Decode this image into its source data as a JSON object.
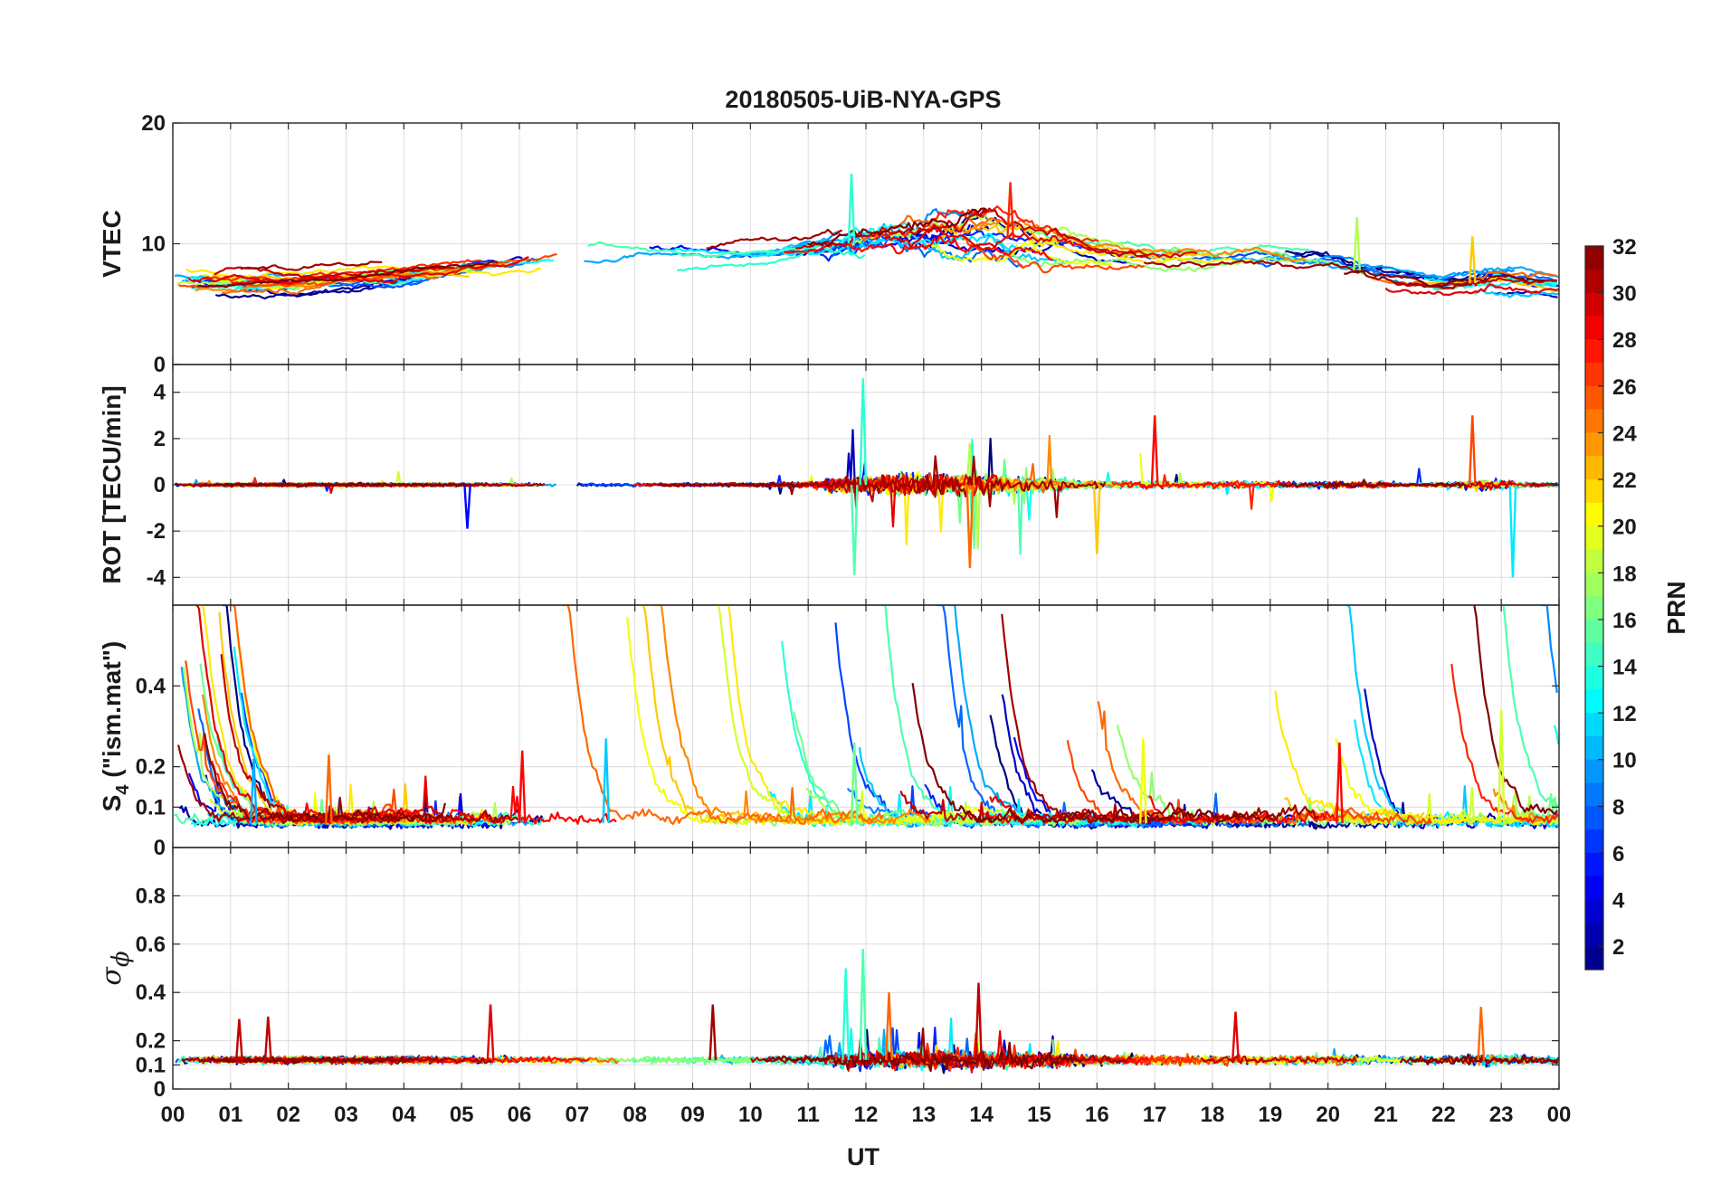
{
  "chart_data": {
    "type": "line",
    "title": "20180505-UiB-NYA-GPS",
    "xlabel": "UT",
    "x_range_hours": [
      0,
      24
    ],
    "x_tick_labels": [
      "00",
      "01",
      "02",
      "03",
      "04",
      "05",
      "06",
      "07",
      "08",
      "09",
      "10",
      "11",
      "12",
      "13",
      "14",
      "15",
      "16",
      "17",
      "18",
      "19",
      "20",
      "21",
      "22",
      "23",
      "00"
    ],
    "colorbar": {
      "label": "PRN",
      "range": [
        1,
        32
      ],
      "tick_labels": [
        "2",
        "4",
        "6",
        "8",
        "10",
        "12",
        "14",
        "16",
        "18",
        "20",
        "22",
        "24",
        "26",
        "28",
        "30",
        "32"
      ],
      "colormap": "jet"
    },
    "panels": [
      {
        "id": "vtec",
        "ylabel": "VTEC",
        "ylim": [
          0,
          20
        ],
        "ytick_labels": [
          "0",
          "10",
          "20"
        ],
        "yticks": [
          0,
          10,
          20
        ],
        "baseline_profile": [
          [
            0,
            7.2
          ],
          [
            2,
            6.8
          ],
          [
            4,
            7.5
          ],
          [
            6,
            8.5
          ],
          [
            8,
            9.2
          ],
          [
            10,
            9.0
          ],
          [
            11,
            9.5
          ],
          [
            12,
            10.2
          ],
          [
            14,
            10.8
          ],
          [
            15,
            10.0
          ],
          [
            16,
            9.2
          ],
          [
            17,
            8.6
          ],
          [
            18,
            8.7
          ],
          [
            19,
            8.8
          ],
          [
            20,
            8.4
          ],
          [
            21,
            7.2
          ],
          [
            22,
            6.5
          ],
          [
            23,
            7.0
          ],
          [
            24,
            6.6
          ]
        ],
        "notable_peaks": [
          {
            "t": 11.75,
            "v": 15.8,
            "prn": 14
          },
          {
            "t": 14.5,
            "v": 15.1,
            "prn": 27
          },
          {
            "t": 20.5,
            "v": 12.2,
            "prn": 18
          },
          {
            "t": 22.5,
            "v": 10.6,
            "prn": 22
          }
        ]
      },
      {
        "id": "rot",
        "ylabel": "ROT [TECU/min]",
        "ylim": [
          -5.2,
          5.2
        ],
        "ytick_labels": [
          "-4",
          "-2",
          "0",
          "2",
          "4"
        ],
        "yticks": [
          -4,
          -2,
          0,
          2,
          4
        ],
        "notable_peaks": [
          {
            "t": 11.95,
            "v": 4.6,
            "prn": 14
          },
          {
            "t": 11.8,
            "v": -3.9,
            "prn": 15
          },
          {
            "t": 13.8,
            "v": -3.6,
            "prn": 25
          },
          {
            "t": 16.0,
            "v": -3.0,
            "prn": 22
          },
          {
            "t": 17.0,
            "v": 3.0,
            "prn": 28
          },
          {
            "t": 22.5,
            "v": 3.0,
            "prn": 26
          },
          {
            "t": 23.2,
            "v": -4.0,
            "prn": 12
          },
          {
            "t": 5.1,
            "v": -1.9,
            "prn": 5
          }
        ]
      },
      {
        "id": "s4",
        "ylabel": "S",
        "ylabel_sub": "4",
        "ylabel_rest": " (\"ism.mat\")",
        "ylim": [
          0,
          0.6
        ],
        "ytick_labels": [
          "0",
          "0.1",
          "0.2",
          "0.4"
        ],
        "yticks": [
          0,
          0.1,
          0.2,
          0.4
        ],
        "notable_peaks": [
          {
            "t": 1.4,
            "v": 0.22,
            "prn": 10
          },
          {
            "t": 2.7,
            "v": 0.23,
            "prn": 25
          },
          {
            "t": 6.05,
            "v": 0.24,
            "prn": 28
          },
          {
            "t": 7.5,
            "v": 0.27,
            "prn": 11
          },
          {
            "t": 11.8,
            "v": 0.26,
            "prn": 16
          },
          {
            "t": 16.8,
            "v": 0.27,
            "prn": 20
          },
          {
            "t": 20.2,
            "v": 0.26,
            "prn": 28
          },
          {
            "t": 23.0,
            "v": 0.34,
            "prn": 19
          }
        ]
      },
      {
        "id": "sigma_phi",
        "ylabel": "σ",
        "ylabel_sub": "ϕ",
        "ylim": [
          0,
          1.0
        ],
        "ytick_labels": [
          "0",
          "0.1",
          "0.2",
          "0.4",
          "0.6",
          "0.8"
        ],
        "yticks": [
          0,
          0.1,
          0.2,
          0.4,
          0.6,
          0.8
        ],
        "baseline": 0.12,
        "notable_peaks": [
          {
            "t": 1.15,
            "v": 0.29,
            "prn": 30
          },
          {
            "t": 1.65,
            "v": 0.3,
            "prn": 30
          },
          {
            "t": 5.5,
            "v": 0.35,
            "prn": 29
          },
          {
            "t": 9.35,
            "v": 0.35,
            "prn": 31
          },
          {
            "t": 11.65,
            "v": 0.5,
            "prn": 14
          },
          {
            "t": 11.95,
            "v": 0.58,
            "prn": 15
          },
          {
            "t": 12.4,
            "v": 0.4,
            "prn": 25
          },
          {
            "t": 13.95,
            "v": 0.44,
            "prn": 30
          },
          {
            "t": 18.4,
            "v": 0.32,
            "prn": 29
          },
          {
            "t": 22.65,
            "v": 0.34,
            "prn": 25
          }
        ]
      }
    ]
  }
}
